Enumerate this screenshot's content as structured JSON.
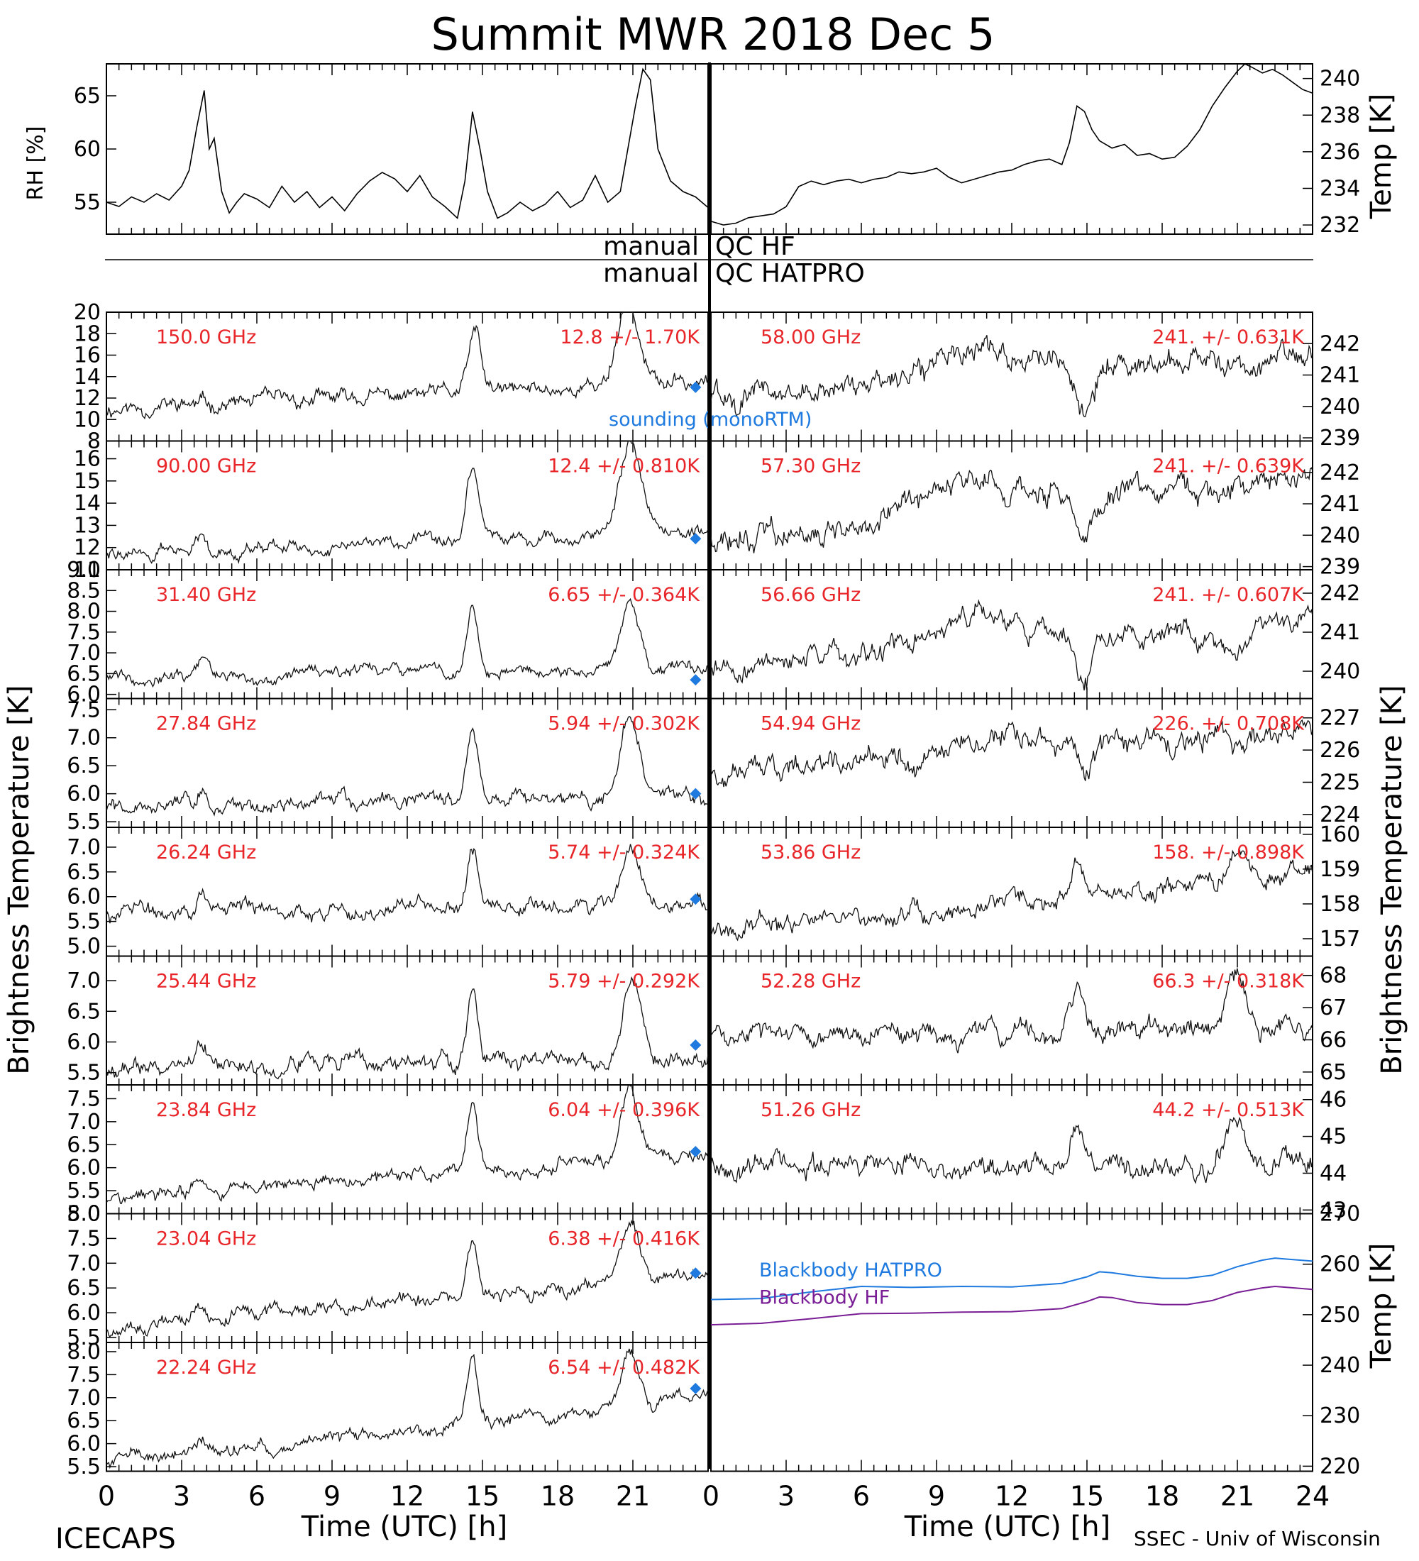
{
  "header": {
    "title": "Summit MWR 2018 Dec  5"
  },
  "footer": {
    "left": "ICECAPS",
    "right": "SSEC - Univ of Wisconsin",
    "xlabel_left": "Time (UTC) [h]",
    "xlabel_right": "Time (UTC) [h]"
  },
  "qc": {
    "hf_left": "manual",
    "hf_right": "QC HF",
    "hatpro_left": "manual",
    "hatpro_right": "QC HATPRO"
  },
  "colors": {
    "label_red": "#e8262a",
    "sounding_blue": "#1f7ae0",
    "bb_hatpro": "#1f7ae0",
    "bb_hf": "#7a1e96"
  },
  "chart_data": [
    {
      "id": "rh",
      "type": "line",
      "ylabel": "RH [%]",
      "xlim": [
        0,
        24
      ],
      "ylim": [
        52,
        68
      ],
      "yticks": [
        "55",
        "60",
        "65"
      ],
      "x": [
        0,
        0.5,
        1,
        1.5,
        2,
        2.5,
        3,
        3.3,
        3.6,
        3.9,
        4.1,
        4.3,
        4.6,
        4.9,
        5.2,
        5.5,
        6,
        6.5,
        7,
        7.5,
        8,
        8.5,
        9,
        9.5,
        10,
        10.5,
        11,
        11.5,
        12,
        12.5,
        13,
        13.5,
        14,
        14.3,
        14.6,
        14.9,
        15.2,
        15.6,
        16,
        16.5,
        17,
        17.5,
        18,
        18.5,
        19,
        19.5,
        20,
        20.5,
        20.8,
        21.1,
        21.4,
        21.7,
        22,
        22.5,
        23,
        23.5,
        24
      ],
      "y": [
        55,
        54.6,
        55.5,
        55,
        55.8,
        55.2,
        56.5,
        58,
        62,
        65.5,
        60,
        61,
        56,
        54,
        55,
        55.8,
        55.3,
        54.5,
        56.5,
        55,
        56,
        54.5,
        55.5,
        54.2,
        55.8,
        57,
        57.8,
        57.2,
        56,
        57.5,
        55.5,
        54.6,
        53.5,
        57,
        63.5,
        60,
        56,
        53.5,
        54,
        55,
        54.2,
        54.8,
        56,
        54.5,
        55.2,
        57.5,
        55,
        56,
        60,
        64,
        67.5,
        66.5,
        60,
        57,
        56,
        55.5,
        54.5
      ]
    },
    {
      "id": "temp_top",
      "type": "line",
      "ylabel": "Temp [K]",
      "xlim": [
        0,
        24
      ],
      "ylim": [
        231.5,
        240.8
      ],
      "yticks": [
        "232",
        "234",
        "236",
        "238",
        "240"
      ],
      "x": [
        0,
        0.5,
        1,
        1.5,
        2,
        2.5,
        3,
        3.5,
        4,
        4.5,
        5,
        5.5,
        6,
        6.5,
        7,
        7.5,
        8,
        8.5,
        9,
        9.5,
        10,
        10.5,
        11,
        11.5,
        12,
        12.5,
        13,
        13.5,
        14,
        14.3,
        14.6,
        14.9,
        15.2,
        15.5,
        16,
        16.5,
        17,
        17.5,
        18,
        18.5,
        19,
        19.5,
        20,
        20.5,
        21,
        21.3,
        21.6,
        22,
        22.4,
        22.8,
        23.2,
        23.6,
        24
      ],
      "y": [
        232.2,
        232,
        232.1,
        232.4,
        232.5,
        232.6,
        233,
        234.1,
        234.4,
        234.2,
        234.4,
        234.5,
        234.3,
        234.5,
        234.6,
        234.9,
        234.8,
        234.9,
        235.1,
        234.6,
        234.3,
        234.5,
        234.7,
        234.9,
        235,
        235.3,
        235.5,
        235.6,
        235.3,
        236.5,
        238.5,
        238.2,
        237.2,
        236.6,
        236.2,
        236.4,
        235.8,
        235.9,
        235.6,
        235.7,
        236.3,
        237.2,
        238.5,
        239.5,
        240.4,
        240.8,
        240.6,
        240.3,
        240.5,
        240.2,
        239.8,
        239.4,
        239.2
      ]
    },
    {
      "id": "ch150",
      "type": "line",
      "label": "150.0 GHz",
      "stat": "12.8 +/- 1.70K",
      "ylim": [
        8,
        20
      ],
      "yticks": [
        "8",
        "10",
        "12",
        "14",
        "16",
        "18",
        "20"
      ],
      "base": [
        11.0,
        13.5
      ],
      "events": [
        [
          14.7,
          5.5,
          0.35
        ],
        [
          20.8,
          8.0,
          0.6
        ]
      ],
      "noise": 0.9,
      "seed": 11,
      "sounding": 13.0
    },
    {
      "id": "ch90",
      "type": "line",
      "label": "90.00 GHz",
      "stat": "12.4 +/- 0.810K",
      "ylim": [
        11,
        16.8
      ],
      "yticks": [
        "11",
        "12",
        "13",
        "14",
        "15",
        "16"
      ],
      "base": [
        11.7,
        12.8
      ],
      "events": [
        [
          3.8,
          0.8,
          0.3
        ],
        [
          14.6,
          2.8,
          0.35
        ],
        [
          20.9,
          4.0,
          0.6
        ]
      ],
      "noise": 0.35,
      "seed": 22,
      "sounding": 12.4
    },
    {
      "id": "ch3140",
      "type": "line",
      "label": "31.40 GHz",
      "stat": "6.65 +/- 0.364K",
      "ylim": [
        5.9,
        9.0
      ],
      "yticks": [
        "6.0",
        "6.5",
        "7.0",
        "7.5",
        "8.0",
        "8.5",
        "9.0"
      ],
      "base": [
        6.45,
        6.6
      ],
      "events": [
        [
          3.9,
          0.4,
          0.3
        ],
        [
          14.6,
          1.4,
          0.3
        ],
        [
          20.9,
          1.7,
          0.5
        ]
      ],
      "noise": 0.18,
      "seed": 33,
      "sounding": 6.35
    },
    {
      "id": "ch2784",
      "type": "line",
      "label": "27.84 GHz",
      "stat": "5.94 +/- 0.302K",
      "ylim": [
        5.4,
        7.7
      ],
      "yticks": [
        "5.5",
        "6.0",
        "6.5",
        "7.0",
        "7.5"
      ],
      "base": [
        5.75,
        5.95
      ],
      "events": [
        [
          3.8,
          0.3,
          0.3
        ],
        [
          14.6,
          1.2,
          0.3
        ],
        [
          20.9,
          1.5,
          0.5
        ]
      ],
      "noise": 0.17,
      "seed": 44,
      "sounding": 6.0
    },
    {
      "id": "ch2624",
      "type": "line",
      "label": "26.24 GHz",
      "stat": "5.74 +/- 0.324K",
      "ylim": [
        4.8,
        7.4
      ],
      "yticks": [
        "5.0",
        "5.5",
        "6.0",
        "6.5",
        "7.0"
      ],
      "base": [
        5.7,
        5.85
      ],
      "events": [
        [
          3.8,
          0.4,
          0.3
        ],
        [
          14.6,
          1.2,
          0.3
        ],
        [
          20.9,
          1.3,
          0.5
        ]
      ],
      "noise": 0.2,
      "seed": 55,
      "sounding": 5.95
    },
    {
      "id": "ch2544",
      "type": "line",
      "label": "25.44 GHz",
      "stat": "5.79 +/- 0.292K",
      "ylim": [
        5.3,
        7.4
      ],
      "yticks": [
        "5.5",
        "6.0",
        "6.5",
        "7.0"
      ],
      "base": [
        5.6,
        5.75
      ],
      "events": [
        [
          3.8,
          0.4,
          0.3
        ],
        [
          14.6,
          1.2,
          0.3
        ],
        [
          20.9,
          1.3,
          0.5
        ]
      ],
      "noise": 0.17,
      "seed": 66,
      "sounding": 5.95
    },
    {
      "id": "ch2384",
      "type": "line",
      "label": "23.84 GHz",
      "stat": "6.04 +/- 0.396K",
      "ylim": [
        5.0,
        7.8
      ],
      "yticks": [
        "5.0",
        "5.5",
        "6.0",
        "6.5",
        "7.0",
        "7.5"
      ],
      "base": [
        5.3,
        6.3
      ],
      "events": [
        [
          3.8,
          0.3,
          0.3
        ],
        [
          14.6,
          1.3,
          0.3
        ],
        [
          20.9,
          1.4,
          0.5
        ]
      ],
      "noise": 0.18,
      "seed": 77,
      "sounding": 6.35
    },
    {
      "id": "ch2304",
      "type": "line",
      "label": "23.04 GHz",
      "stat": "6.38 +/- 0.416K",
      "ylim": [
        5.4,
        8.0
      ],
      "yticks": [
        "5.5",
        "6.0",
        "6.5",
        "7.0",
        "7.5",
        "8.0"
      ],
      "base": [
        5.7,
        6.75
      ],
      "events": [
        [
          3.8,
          0.3,
          0.3
        ],
        [
          14.6,
          1.1,
          0.3
        ],
        [
          20.9,
          1.2,
          0.5
        ]
      ],
      "noise": 0.17,
      "seed": 88,
      "sounding": 6.8
    },
    {
      "id": "ch2224",
      "type": "line",
      "label": "22.24 GHz",
      "stat": "6.54 +/- 0.482K",
      "ylim": [
        5.4,
        8.2
      ],
      "yticks": [
        "5.5",
        "6.0",
        "6.5",
        "7.0",
        "7.5",
        "8.0"
      ],
      "base": [
        5.6,
        7.0
      ],
      "events": [
        [
          3.8,
          0.3,
          0.3
        ],
        [
          14.6,
          1.3,
          0.3
        ],
        [
          20.9,
          1.2,
          0.5
        ]
      ],
      "noise": 0.18,
      "seed": 99,
      "sounding": 7.2
    },
    {
      "id": "ch5800",
      "type": "line",
      "label": "58.00 GHz",
      "stat": "241. +/- 0.631K",
      "ylim": [
        238.9,
        243.0
      ],
      "yticks": [
        "239",
        "240",
        "241",
        "242"
      ],
      "base": [
        240.3,
        241.8
      ],
      "events": [
        [
          10.5,
          1.0,
          2.5
        ],
        [
          14.9,
          -1.4,
          0.5
        ],
        [
          21.5,
          -0.5,
          1.0
        ]
      ],
      "noise": 0.5,
      "seed": 101,
      "sounding": null
    },
    {
      "id": "ch5730",
      "type": "line",
      "label": "57.30 GHz",
      "stat": "241. +/- 0.639K",
      "ylim": [
        238.9,
        243.0
      ],
      "yticks": [
        "239",
        "240",
        "241",
        "242"
      ],
      "base": [
        240.0,
        241.8
      ],
      "events": [
        [
          10.5,
          1.0,
          2.5
        ],
        [
          14.9,
          -1.4,
          0.5
        ],
        [
          20.5,
          -0.5,
          1.0
        ]
      ],
      "noise": 0.5,
      "seed": 202,
      "sounding": null
    },
    {
      "id": "ch5666",
      "type": "line",
      "label": "56.66 GHz",
      "stat": "241. +/- 0.607K",
      "ylim": [
        239.3,
        242.6
      ],
      "yticks": [
        "240",
        "241",
        "242"
      ],
      "base": [
        240.1,
        241.3
      ],
      "events": [
        [
          10.5,
          0.9,
          2.5
        ],
        [
          14.9,
          -1.1,
          0.5
        ],
        [
          20.5,
          -0.5,
          1.0
        ]
      ],
      "noise": 0.35,
      "seed": 303,
      "sounding": null
    },
    {
      "id": "ch5494",
      "type": "line",
      "label": "54.94 GHz",
      "stat": "226. +/- 0.708K",
      "ylim": [
        223.6,
        227.6
      ],
      "yticks": [
        "224",
        "225",
        "226",
        "227"
      ],
      "base": [
        225.3,
        226.6
      ],
      "events": [
        [
          12.5,
          0.5,
          2.0
        ],
        [
          14.9,
          -0.9,
          0.4
        ]
      ],
      "noise": 0.45,
      "seed": 404,
      "sounding": null
    },
    {
      "id": "ch5386",
      "type": "line",
      "label": "53.86 GHz",
      "stat": "158. +/- 0.898K",
      "ylim": [
        156.5,
        160.2
      ],
      "yticks": [
        "157",
        "158",
        "159",
        "160"
      ],
      "base": [
        157.2,
        158.9
      ],
      "events": [
        [
          14.6,
          0.8,
          0.5
        ],
        [
          21.0,
          0.6,
          0.5
        ]
      ],
      "noise": 0.35,
      "seed": 505,
      "sounding": null
    },
    {
      "id": "ch5228",
      "type": "line",
      "label": "52.28 GHz",
      "stat": "66.3 +/- 0.318K",
      "ylim": [
        64.6,
        68.6
      ],
      "yticks": [
        "65",
        "66",
        "67",
        "68"
      ],
      "base": [
        66.2,
        66.4
      ],
      "events": [
        [
          14.6,
          1.4,
          0.4
        ],
        [
          20.9,
          1.7,
          0.5
        ]
      ],
      "noise": 0.4,
      "seed": 606,
      "sounding": null
    },
    {
      "id": "ch5126",
      "type": "line",
      "label": "51.26 GHz",
      "stat": "44.2 +/- 0.513K",
      "ylim": [
        42.9,
        46.4
      ],
      "yticks": [
        "43",
        "44",
        "45",
        "46"
      ],
      "base": [
        44.2,
        44.2
      ],
      "events": [
        [
          14.6,
          1.5,
          0.4
        ],
        [
          20.9,
          1.6,
          0.5
        ]
      ],
      "noise": 0.38,
      "seed": 707,
      "sounding": null
    },
    {
      "id": "blackbody",
      "type": "line",
      "ylabel": "Temp [K]",
      "xlim": [
        0,
        24
      ],
      "ylim": [
        219,
        270
      ],
      "yticks": [
        "220",
        "230",
        "240",
        "250",
        "260",
        "270"
      ],
      "x": [
        0,
        2,
        4,
        6,
        8,
        10,
        12,
        14,
        15,
        15.5,
        16,
        17,
        18,
        19,
        20,
        21,
        22,
        22.5,
        23,
        24
      ],
      "series": [
        {
          "name": "Blackbody HATPRO",
          "values": [
            253,
            253.2,
            254.5,
            255.6,
            255.4,
            255.6,
            255.5,
            256.2,
            257.5,
            258.5,
            258.3,
            257.6,
            257.2,
            257.2,
            257.8,
            259.5,
            260.8,
            261.2,
            261,
            260.6
          ]
        },
        {
          "name": "Blackbody HF",
          "values": [
            248,
            248.3,
            249.2,
            250.2,
            250.3,
            250.5,
            250.6,
            251.2,
            252.6,
            253.5,
            253.4,
            252.4,
            252,
            252,
            252.8,
            254.4,
            255.3,
            255.6,
            255.4,
            255
          ]
        }
      ]
    }
  ],
  "labels": {
    "bt_left": "Brightness Temperature [K]",
    "bt_right": "Brightness Temperature [K]",
    "sounding": "sounding (monoRTM)",
    "x_ticks_left": [
      "0",
      "3",
      "6",
      "9",
      "12",
      "15",
      "18",
      "21"
    ],
    "x_ticks_right": [
      "0",
      "3",
      "6",
      "9",
      "12",
      "15",
      "18",
      "21",
      "24"
    ]
  }
}
